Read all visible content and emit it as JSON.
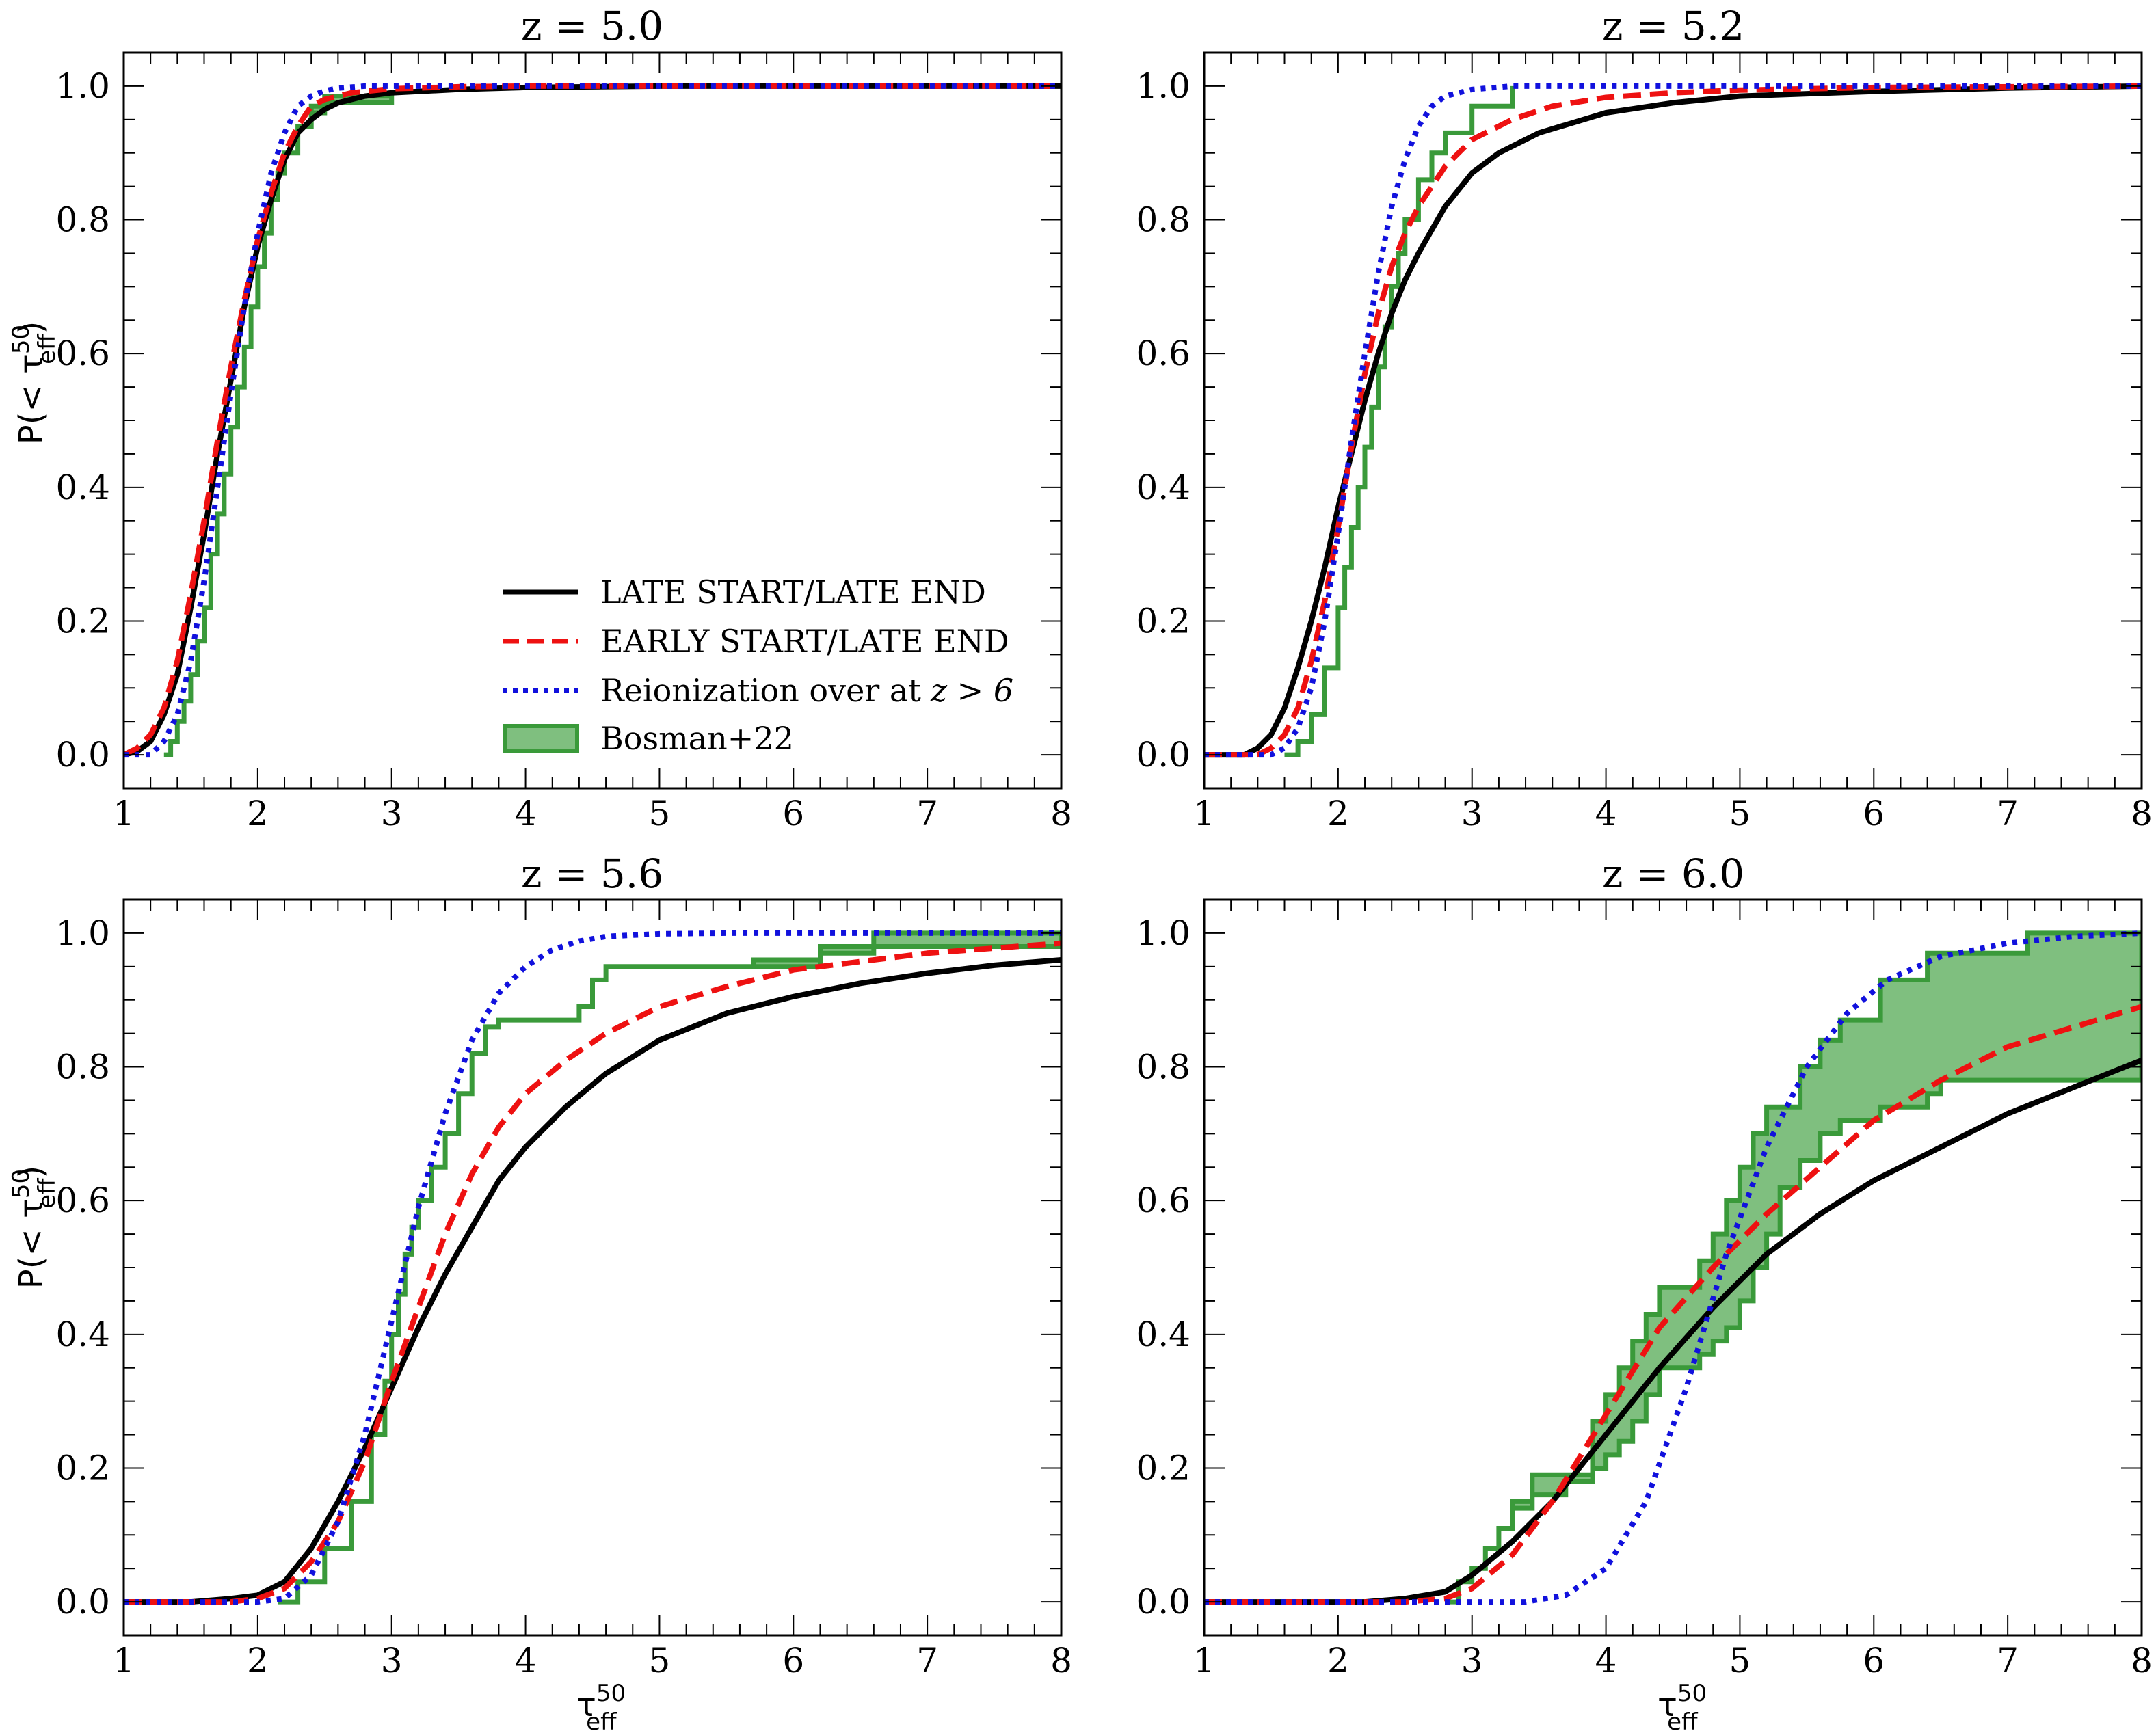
{
  "colors": {
    "late": "#000000",
    "early": "#ee1111",
    "over": "#1111dd",
    "bosman_fill": "#7fbf7f",
    "bosman_edge": "#3a9a3a"
  },
  "axis_labels": {
    "y_prefix": "P(< τ",
    "y_super": "50",
    "y_sub": "eff",
    "y_suffix": ")",
    "x_main": "τ",
    "x_super": "50",
    "x_sub": "eff"
  },
  "legend": {
    "late": "LATE START/LATE END",
    "early": "EARLY START/LATE END",
    "over_prefix": "Reionization over at",
    "over_math": "z > 6",
    "bosman": "Bosman+22"
  },
  "chart_data": [
    {
      "type": "line",
      "title": "z = 5.0",
      "xlim": [
        1,
        8
      ],
      "ylim": [
        -0.05,
        1.05
      ],
      "xticks": [
        "1",
        "2",
        "3",
        "4",
        "5",
        "6",
        "7",
        "8"
      ],
      "yticks": [
        "0.0",
        "0.2",
        "0.4",
        "0.6",
        "0.8",
        "1.0"
      ],
      "xlabel": "",
      "ylabel": "P(< τeff50)",
      "legend_location": "lower-right",
      "series": [
        {
          "name": "LATE START/LATE END",
          "style": "solid",
          "x": [
            1.0,
            1.1,
            1.2,
            1.3,
            1.4,
            1.5,
            1.6,
            1.7,
            1.8,
            1.9,
            2.0,
            2.1,
            2.2,
            2.3,
            2.4,
            2.5,
            2.6,
            2.8,
            3.0,
            3.5,
            4.0,
            5.0,
            8.0
          ],
          "y": [
            0.0,
            0.005,
            0.02,
            0.06,
            0.12,
            0.22,
            0.33,
            0.45,
            0.56,
            0.67,
            0.76,
            0.83,
            0.89,
            0.93,
            0.95,
            0.965,
            0.975,
            0.985,
            0.99,
            0.995,
            0.998,
            1.0,
            1.0
          ]
        },
        {
          "name": "EARLY START/LATE END",
          "style": "dashed",
          "x": [
            1.0,
            1.1,
            1.2,
            1.3,
            1.4,
            1.5,
            1.6,
            1.7,
            1.8,
            1.9,
            2.0,
            2.1,
            2.2,
            2.3,
            2.4,
            2.5,
            2.7,
            3.0,
            3.5,
            4.0,
            8.0
          ],
          "y": [
            0.0,
            0.01,
            0.03,
            0.07,
            0.14,
            0.24,
            0.35,
            0.47,
            0.58,
            0.68,
            0.77,
            0.84,
            0.9,
            0.94,
            0.97,
            0.98,
            0.99,
            0.996,
            0.999,
            1.0,
            1.0
          ]
        },
        {
          "name": "Reionization over at z > 6",
          "style": "dotted",
          "x": [
            1.0,
            1.2,
            1.3,
            1.4,
            1.5,
            1.6,
            1.7,
            1.8,
            1.9,
            2.0,
            2.1,
            2.2,
            2.3,
            2.4,
            2.5,
            2.6,
            2.8,
            3.0,
            8.0
          ],
          "y": [
            0.0,
            0.0,
            0.02,
            0.06,
            0.14,
            0.26,
            0.4,
            0.54,
            0.67,
            0.78,
            0.87,
            0.93,
            0.97,
            0.985,
            0.993,
            0.997,
            1.0,
            1.0,
            1.0
          ]
        }
      ],
      "bosman": {
        "name": "Bosman+22",
        "x": [
          1.3,
          1.35,
          1.4,
          1.45,
          1.5,
          1.55,
          1.6,
          1.65,
          1.7,
          1.75,
          1.8,
          1.85,
          1.9,
          1.95,
          2.0,
          2.05,
          2.1,
          2.15,
          2.2,
          2.3,
          2.4,
          2.5,
          3.0
        ],
        "lower": [
          0.0,
          0.02,
          0.05,
          0.08,
          0.12,
          0.17,
          0.22,
          0.3,
          0.36,
          0.42,
          0.49,
          0.55,
          0.61,
          0.67,
          0.73,
          0.78,
          0.83,
          0.87,
          0.9,
          0.94,
          0.96,
          0.975,
          0.975
        ],
        "upper": [
          0.0,
          0.02,
          0.05,
          0.08,
          0.12,
          0.17,
          0.22,
          0.3,
          0.36,
          0.42,
          0.49,
          0.55,
          0.61,
          0.67,
          0.73,
          0.78,
          0.83,
          0.87,
          0.9,
          0.94,
          0.97,
          0.985,
          0.985
        ]
      }
    },
    {
      "type": "line",
      "title": "z = 5.2",
      "xlim": [
        1,
        8
      ],
      "ylim": [
        -0.05,
        1.05
      ],
      "xticks": [
        "1",
        "2",
        "3",
        "4",
        "5",
        "6",
        "7",
        "8"
      ],
      "yticks": [
        "0.0",
        "0.2",
        "0.4",
        "0.6",
        "0.8",
        "1.0"
      ],
      "xlabel": "",
      "ylabel": "",
      "series": [
        {
          "name": "LATE START/LATE END",
          "style": "solid",
          "x": [
            1.0,
            1.3,
            1.4,
            1.5,
            1.6,
            1.7,
            1.8,
            1.9,
            2.0,
            2.1,
            2.2,
            2.3,
            2.4,
            2.5,
            2.6,
            2.8,
            3.0,
            3.2,
            3.5,
            4.0,
            4.5,
            5.0,
            6.0,
            7.0,
            8.0
          ],
          "y": [
            0.0,
            0.0,
            0.01,
            0.03,
            0.07,
            0.13,
            0.2,
            0.28,
            0.37,
            0.45,
            0.53,
            0.6,
            0.66,
            0.71,
            0.75,
            0.82,
            0.87,
            0.9,
            0.93,
            0.96,
            0.975,
            0.985,
            0.992,
            0.997,
            1.0
          ]
        },
        {
          "name": "EARLY START/LATE END",
          "style": "dashed",
          "x": [
            1.0,
            1.4,
            1.5,
            1.6,
            1.7,
            1.8,
            1.9,
            2.0,
            2.1,
            2.2,
            2.3,
            2.4,
            2.5,
            2.6,
            2.8,
            3.0,
            3.3,
            3.6,
            4.0,
            4.5,
            5.0,
            6.0,
            8.0
          ],
          "y": [
            0.0,
            0.0,
            0.01,
            0.03,
            0.07,
            0.14,
            0.23,
            0.34,
            0.46,
            0.57,
            0.66,
            0.73,
            0.78,
            0.82,
            0.88,
            0.92,
            0.95,
            0.97,
            0.983,
            0.99,
            0.994,
            0.998,
            1.0
          ]
        },
        {
          "name": "Reionization over at z > 6",
          "style": "dotted",
          "x": [
            1.0,
            1.5,
            1.6,
            1.7,
            1.8,
            1.9,
            2.0,
            2.1,
            2.2,
            2.3,
            2.4,
            2.5,
            2.6,
            2.7,
            2.8,
            3.0,
            3.3,
            8.0
          ],
          "y": [
            0.0,
            0.0,
            0.01,
            0.04,
            0.1,
            0.2,
            0.33,
            0.47,
            0.6,
            0.72,
            0.82,
            0.89,
            0.94,
            0.97,
            0.985,
            0.995,
            1.0,
            1.0
          ]
        }
      ],
      "bosman": {
        "name": "Bosman+22",
        "x": [
          1.6,
          1.7,
          1.8,
          1.9,
          2.0,
          2.05,
          2.1,
          2.15,
          2.2,
          2.25,
          2.3,
          2.35,
          2.4,
          2.45,
          2.5,
          2.6,
          2.7,
          2.8,
          3.0,
          3.3
        ],
        "lower": [
          0.0,
          0.02,
          0.06,
          0.13,
          0.22,
          0.28,
          0.34,
          0.4,
          0.46,
          0.52,
          0.58,
          0.64,
          0.7,
          0.75,
          0.8,
          0.86,
          0.9,
          0.93,
          0.97,
          1.0
        ],
        "upper": [
          0.0,
          0.02,
          0.06,
          0.13,
          0.22,
          0.28,
          0.34,
          0.4,
          0.46,
          0.52,
          0.58,
          0.64,
          0.7,
          0.75,
          0.8,
          0.86,
          0.9,
          0.93,
          0.97,
          1.0
        ]
      }
    },
    {
      "type": "line",
      "title": "z = 5.6",
      "xlim": [
        1,
        8
      ],
      "ylim": [
        -0.05,
        1.05
      ],
      "xticks": [
        "1",
        "2",
        "3",
        "4",
        "5",
        "6",
        "7",
        "8"
      ],
      "yticks": [
        "0.0",
        "0.2",
        "0.4",
        "0.6",
        "0.8",
        "1.0"
      ],
      "xlabel": "τeff50",
      "ylabel": "P(< τeff50)",
      "series": [
        {
          "name": "LATE START/LATE END",
          "style": "solid",
          "x": [
            1.0,
            1.5,
            1.8,
            2.0,
            2.2,
            2.4,
            2.6,
            2.8,
            3.0,
            3.2,
            3.4,
            3.6,
            3.8,
            4.0,
            4.3,
            4.6,
            5.0,
            5.5,
            6.0,
            6.5,
            7.0,
            7.5,
            8.0
          ],
          "y": [
            0.0,
            0.0,
            0.005,
            0.01,
            0.03,
            0.08,
            0.15,
            0.23,
            0.32,
            0.41,
            0.49,
            0.56,
            0.63,
            0.68,
            0.74,
            0.79,
            0.84,
            0.88,
            0.905,
            0.925,
            0.94,
            0.952,
            0.96
          ]
        },
        {
          "name": "EARLY START/LATE END",
          "style": "dashed",
          "x": [
            1.0,
            1.8,
            2.0,
            2.2,
            2.4,
            2.6,
            2.8,
            3.0,
            3.2,
            3.4,
            3.6,
            3.8,
            4.0,
            4.3,
            4.6,
            5.0,
            5.5,
            6.0,
            7.0,
            8.0
          ],
          "y": [
            0.0,
            0.0,
            0.005,
            0.02,
            0.06,
            0.12,
            0.21,
            0.33,
            0.44,
            0.55,
            0.64,
            0.71,
            0.76,
            0.81,
            0.85,
            0.89,
            0.92,
            0.945,
            0.97,
            0.985
          ]
        },
        {
          "name": "Reionization over at z > 6",
          "style": "dotted",
          "x": [
            1.0,
            2.0,
            2.2,
            2.4,
            2.6,
            2.8,
            3.0,
            3.2,
            3.4,
            3.6,
            3.8,
            4.0,
            4.2,
            4.4,
            4.6,
            5.0,
            5.5,
            8.0
          ],
          "y": [
            0.0,
            0.0,
            0.005,
            0.04,
            0.12,
            0.25,
            0.42,
            0.59,
            0.73,
            0.84,
            0.91,
            0.95,
            0.975,
            0.988,
            0.995,
            0.999,
            1.0,
            1.0
          ]
        }
      ],
      "bosman": {
        "name": "Bosman+22",
        "x": [
          2.15,
          2.3,
          2.5,
          2.7,
          2.85,
          2.95,
          3.0,
          3.05,
          3.1,
          3.15,
          3.2,
          3.3,
          3.4,
          3.5,
          3.6,
          3.7,
          3.8,
          3.9,
          4.4,
          4.5,
          4.6,
          5.7,
          6.2,
          6.6,
          8.0
        ],
        "lower": [
          0.0,
          0.03,
          0.08,
          0.15,
          0.25,
          0.33,
          0.4,
          0.46,
          0.52,
          0.56,
          0.6,
          0.65,
          0.7,
          0.76,
          0.82,
          0.86,
          0.87,
          0.87,
          0.89,
          0.93,
          0.95,
          0.95,
          0.97,
          0.98,
          0.98
        ],
        "upper": [
          0.0,
          0.03,
          0.08,
          0.15,
          0.25,
          0.33,
          0.4,
          0.46,
          0.52,
          0.56,
          0.6,
          0.65,
          0.7,
          0.76,
          0.82,
          0.86,
          0.87,
          0.87,
          0.89,
          0.93,
          0.95,
          0.96,
          0.98,
          1.0,
          1.0
        ]
      }
    },
    {
      "type": "line",
      "title": "z = 6.0",
      "xlim": [
        1,
        8
      ],
      "ylim": [
        -0.05,
        1.05
      ],
      "xticks": [
        "1",
        "2",
        "3",
        "4",
        "5",
        "6",
        "7",
        "8"
      ],
      "yticks": [
        "0.0",
        "0.2",
        "0.4",
        "0.6",
        "0.8",
        "1.0"
      ],
      "xlabel": "τeff50",
      "ylabel": "",
      "series": [
        {
          "name": "LATE START/LATE END",
          "style": "solid",
          "x": [
            1.0,
            2.2,
            2.5,
            2.8,
            3.0,
            3.3,
            3.6,
            4.0,
            4.4,
            4.8,
            5.2,
            5.6,
            6.0,
            6.5,
            7.0,
            7.5,
            8.0
          ],
          "y": [
            0.0,
            0.0,
            0.005,
            0.015,
            0.04,
            0.09,
            0.15,
            0.25,
            0.35,
            0.44,
            0.52,
            0.58,
            0.63,
            0.68,
            0.73,
            0.77,
            0.81
          ]
        },
        {
          "name": "EARLY START/LATE END",
          "style": "dashed",
          "x": [
            1.0,
            2.5,
            2.8,
            3.0,
            3.3,
            3.6,
            4.0,
            4.4,
            4.8,
            5.2,
            5.6,
            6.0,
            6.5,
            7.0,
            7.5,
            8.0
          ],
          "y": [
            0.0,
            0.0,
            0.005,
            0.02,
            0.07,
            0.15,
            0.28,
            0.41,
            0.5,
            0.58,
            0.65,
            0.72,
            0.78,
            0.83,
            0.86,
            0.89
          ]
        },
        {
          "name": "Reionization over at z > 6",
          "style": "dotted",
          "x": [
            1.0,
            3.4,
            3.7,
            4.0,
            4.3,
            4.6,
            4.9,
            5.2,
            5.5,
            5.8,
            6.1,
            6.5,
            7.0,
            7.5,
            8.0
          ],
          "y": [
            0.0,
            0.0,
            0.01,
            0.05,
            0.15,
            0.32,
            0.52,
            0.68,
            0.8,
            0.88,
            0.93,
            0.965,
            0.985,
            0.995,
            1.0
          ]
        }
      ],
      "bosman": {
        "name": "Bosman+22",
        "x": [
          2.8,
          2.9,
          3.0,
          3.1,
          3.2,
          3.3,
          3.45,
          3.7,
          3.9,
          4.0,
          4.1,
          4.2,
          4.3,
          4.4,
          4.5,
          4.6,
          4.7,
          4.8,
          4.9,
          5.0,
          5.1,
          5.2,
          5.3,
          5.45,
          5.6,
          5.75,
          6.05,
          6.4,
          6.5,
          7.15,
          8.0
        ],
        "lower": [
          0.0,
          0.03,
          0.05,
          0.08,
          0.11,
          0.14,
          0.16,
          0.18,
          0.2,
          0.22,
          0.24,
          0.27,
          0.31,
          0.35,
          0.35,
          0.35,
          0.37,
          0.39,
          0.41,
          0.45,
          0.5,
          0.55,
          0.62,
          0.66,
          0.7,
          0.72,
          0.74,
          0.76,
          0.78,
          0.78,
          0.78
        ],
        "upper": [
          0.0,
          0.03,
          0.05,
          0.08,
          0.11,
          0.15,
          0.19,
          0.19,
          0.27,
          0.31,
          0.35,
          0.39,
          0.43,
          0.47,
          0.47,
          0.47,
          0.51,
          0.55,
          0.6,
          0.65,
          0.7,
          0.74,
          0.74,
          0.8,
          0.84,
          0.87,
          0.93,
          0.97,
          0.97,
          1.0,
          1.0
        ]
      }
    }
  ]
}
